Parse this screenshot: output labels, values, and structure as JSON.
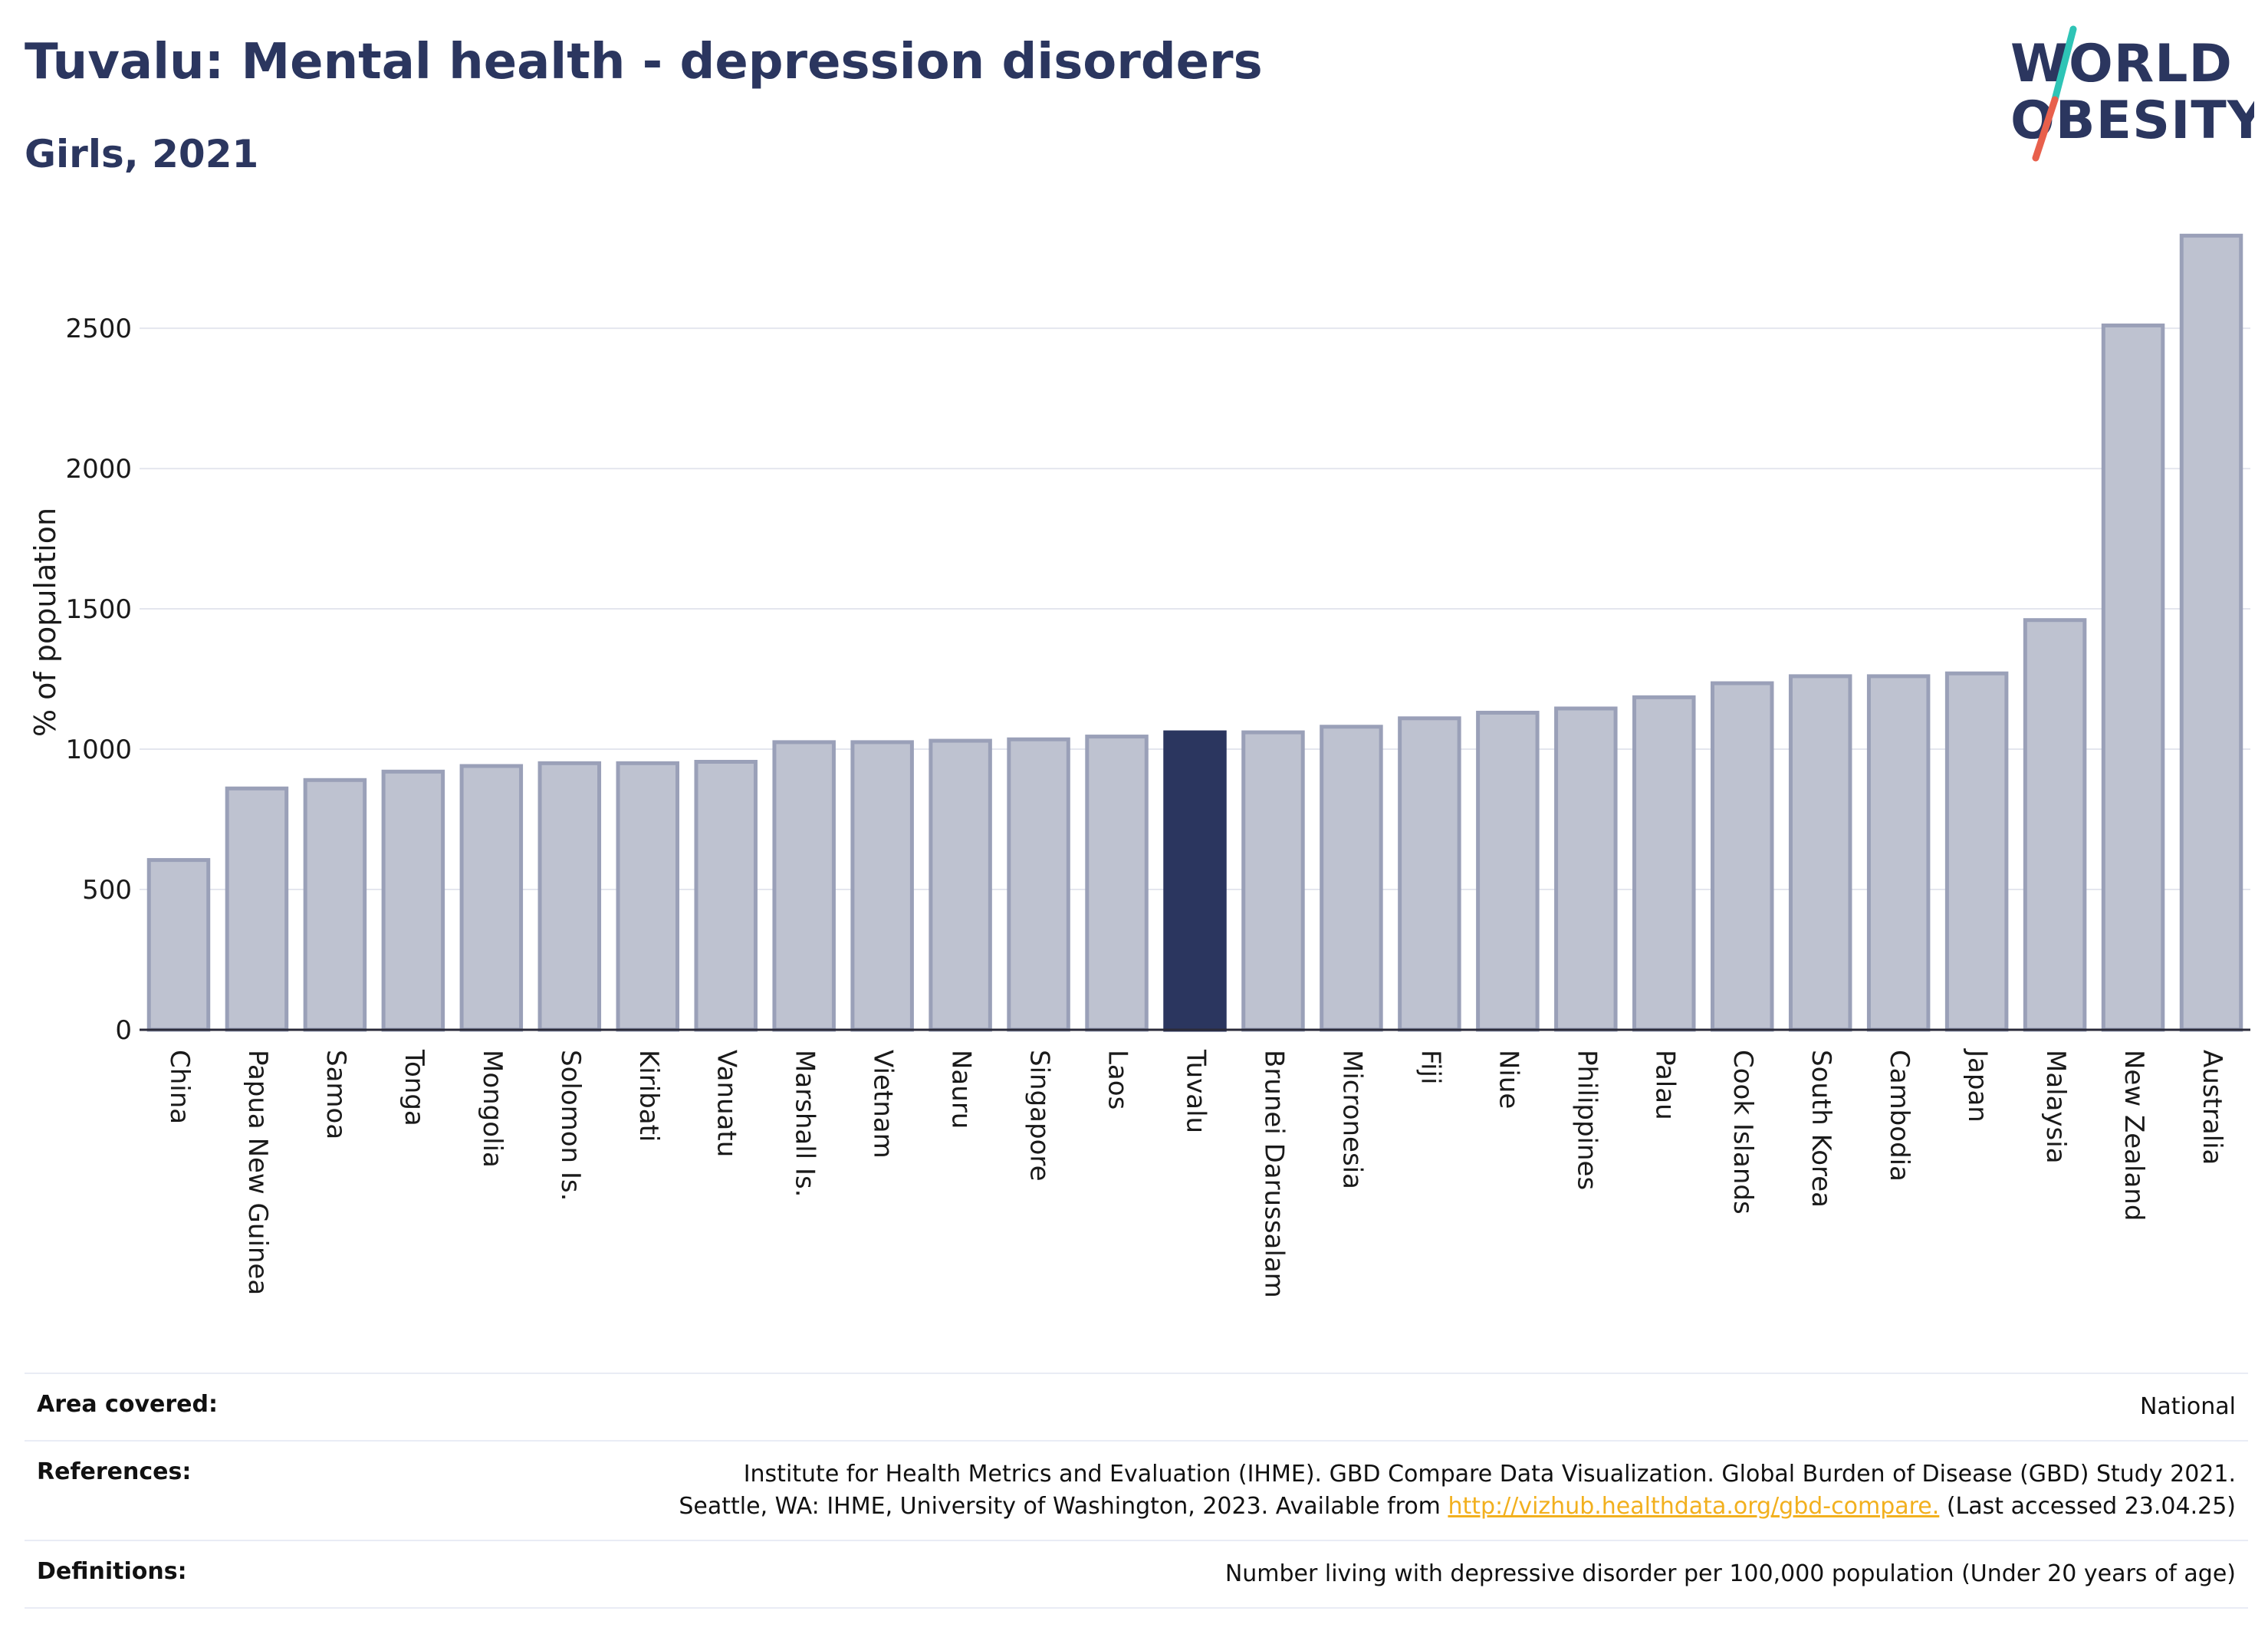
{
  "title": "Tuvalu: Mental health - depression disorders",
  "subtitle": "Girls, 2021",
  "logo": {
    "line1": "WORLD",
    "line2": "OBESITY",
    "colors": {
      "text": "#2b365f",
      "slash_top": "#2ec4b6",
      "slash_bottom": "#e8604c"
    }
  },
  "chart_data": {
    "type": "bar",
    "ylabel": "% of population",
    "xlabel": "",
    "ylim": [
      0,
      2850
    ],
    "yticks": [
      0,
      500,
      1000,
      1500,
      2000,
      2500
    ],
    "grid": true,
    "highlight": "Tuvalu",
    "colors": {
      "bar": "#bec2d0",
      "bar_border": "#9aa0b8",
      "highlight": "#2b365f"
    },
    "categories": [
      "China",
      "Papua New Guinea",
      "Samoa",
      "Tonga",
      "Mongolia",
      "Solomon Is.",
      "Kiribati",
      "Vanuatu",
      "Marshall Is.",
      "Vietnam",
      "Nauru",
      "Singapore",
      "Laos",
      "Tuvalu",
      "Brunei Darussalam",
      "Micronesia",
      "Fiji",
      "Niue",
      "Philippines",
      "Palau",
      "Cook Islands",
      "South Korea",
      "Cambodia",
      "Japan",
      "Malaysia",
      "New Zealand",
      "Australia"
    ],
    "values": [
      605,
      860,
      890,
      920,
      940,
      950,
      950,
      955,
      1025,
      1025,
      1030,
      1035,
      1045,
      1060,
      1060,
      1080,
      1110,
      1130,
      1145,
      1185,
      1235,
      1260,
      1260,
      1270,
      1460,
      2510,
      2830
    ]
  },
  "info": {
    "area_label": "Area covered:",
    "area_value": "National",
    "references_label": "References:",
    "references_line1": "Institute for Health Metrics and Evaluation (IHME). GBD Compare Data Visualization. Global Burden of Disease (GBD) Study 2021.",
    "references_line2_pre": "Seattle, WA: IHME, University of Washington, 2023. Available from ",
    "references_link": "http://vizhub.healthdata.org/gbd-compare.",
    "references_line2_post": " (Last accessed 23.04.25)",
    "definitions_label": "Definitions:",
    "definitions_value": "Number living with depressive disorder per 100,000 population (Under 20 years of age)"
  }
}
